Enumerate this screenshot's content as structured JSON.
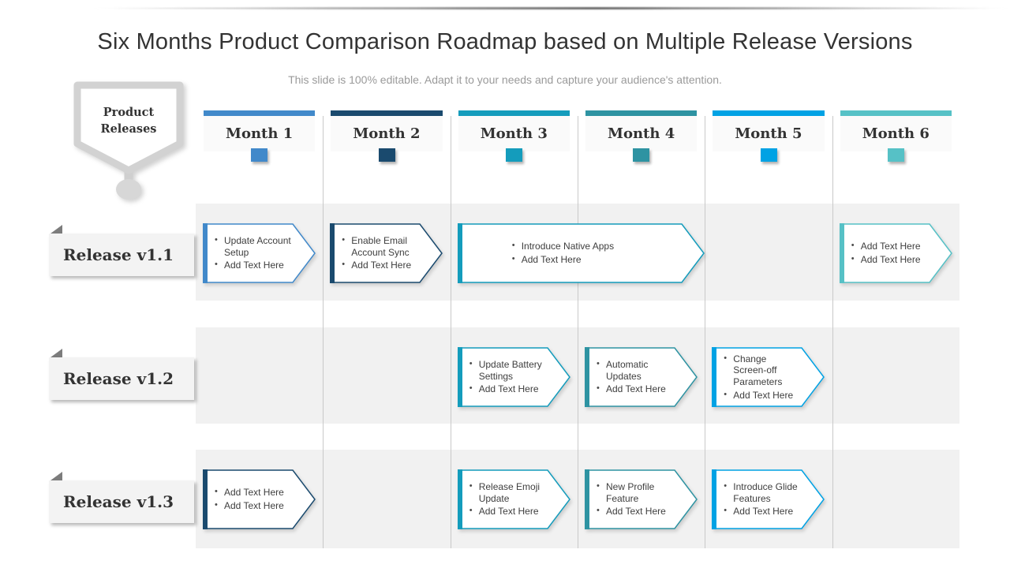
{
  "slide": {
    "title": "Six Months Product Comparison Roadmap based on Multiple Release Versions",
    "subtitle": "This slide is 100% editable. Adapt it to your needs and capture your audience's attention."
  },
  "legend_badge": {
    "line1": "Product",
    "line2": "Releases"
  },
  "colors": {
    "band": "#f1f1f1",
    "gridline": "#c9c9c9",
    "badge_gray": "#d2d2d2",
    "label_fold": "#7c7c7c"
  },
  "columns": [
    {
      "label": "Month 1",
      "color": "#4189ca"
    },
    {
      "label": "Month 2",
      "color": "#1a4a6e"
    },
    {
      "label": "Month 3",
      "color": "#149cbc"
    },
    {
      "label": "Month 4",
      "color": "#2e93a2"
    },
    {
      "label": "Month 5",
      "color": "#00a2e4"
    },
    {
      "label": "Month 6",
      "color": "#56c1c6"
    }
  ],
  "rows": [
    {
      "label": "Release v1.1"
    },
    {
      "label": "Release v1.2"
    },
    {
      "label": "Release v1.3"
    }
  ],
  "items": [
    {
      "row": 0,
      "col": 0,
      "span": 1,
      "color": "#4189ca",
      "bullets": [
        "Update Account Setup",
        "Add Text Here"
      ]
    },
    {
      "row": 0,
      "col": 1,
      "span": 1,
      "color": "#1a4a6e",
      "bullets": [
        "Enable Email Account Sync",
        "Add Text Here"
      ]
    },
    {
      "row": 0,
      "col": 2,
      "span": 2,
      "color": "#149cbc",
      "bullets": [
        "Introduce Native Apps",
        "Add Text Here"
      ]
    },
    {
      "row": 0,
      "col": 5,
      "span": 1,
      "color": "#56c1c6",
      "bullets": [
        "Add Text Here",
        "Add Text Here"
      ]
    },
    {
      "row": 1,
      "col": 2,
      "span": 1,
      "color": "#149cbc",
      "bullets": [
        "Update Battery Settings",
        "Add Text Here"
      ]
    },
    {
      "row": 1,
      "col": 3,
      "span": 1,
      "color": "#2e93a2",
      "bullets": [
        "Automatic Updates",
        "Add Text Here"
      ]
    },
    {
      "row": 1,
      "col": 4,
      "span": 1,
      "color": "#00a2e4",
      "bullets": [
        "Change Screen-off Parameters",
        "Add Text Here"
      ]
    },
    {
      "row": 2,
      "col": 0,
      "span": 1,
      "color": "#1a4a6e",
      "bullets": [
        "Add Text Here",
        "Add Text Here"
      ]
    },
    {
      "row": 2,
      "col": 2,
      "span": 1,
      "color": "#149cbc",
      "bullets": [
        "Release Emoji Update",
        "Add Text Here"
      ]
    },
    {
      "row": 2,
      "col": 3,
      "span": 1,
      "color": "#2e93a2",
      "bullets": [
        "New Profile Feature",
        "Add Text Here"
      ]
    },
    {
      "row": 2,
      "col": 4,
      "span": 1,
      "color": "#00a2e4",
      "bullets": [
        "Introduce Glide Features",
        "Add Text Here"
      ]
    }
  ]
}
